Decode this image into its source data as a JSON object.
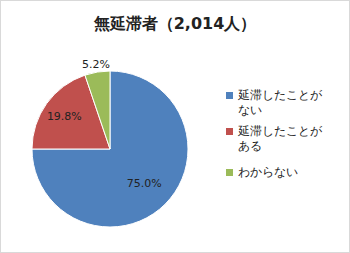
{
  "chart_data": {
    "type": "pie",
    "title": "無延滞者（2,014人）",
    "categories": [
      "延滞したことがない",
      "延滞したことがある",
      "わからない"
    ],
    "values": [
      75.0,
      19.8,
      5.2
    ],
    "value_labels": [
      "75.0%",
      "19.8%",
      "5.2%"
    ],
    "colors": [
      "#4f81bd",
      "#c0504d",
      "#9bbb59"
    ],
    "data_labels": true,
    "legend": "right"
  }
}
